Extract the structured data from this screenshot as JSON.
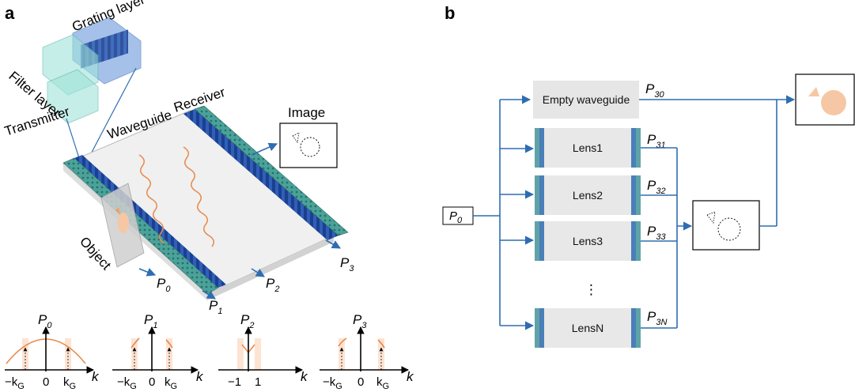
{
  "panels": {
    "a": "a",
    "b": "b"
  },
  "panel_a": {
    "grating_layer": "Grating layer",
    "filter_layer": "Filter layer",
    "waveguide": "Waveguide",
    "receiver": "Receiver",
    "transmitter": "Transmitter",
    "image": "Image",
    "object": "Object",
    "ports": [
      {
        "base": "P",
        "sub": "0"
      },
      {
        "base": "P",
        "sub": "1"
      },
      {
        "base": "P",
        "sub": "2"
      },
      {
        "base": "P",
        "sub": "3"
      }
    ]
  },
  "spectra": [
    {
      "ylabel": {
        "base": "P",
        "sub": "0"
      },
      "ticks": [
        "−k",
        "0",
        "k"
      ],
      "tick_subs": [
        "G",
        "",
        "G"
      ],
      "xlabel": "k"
    },
    {
      "ylabel": {
        "base": "P",
        "sub": "1"
      },
      "ticks": [
        "−k",
        "0",
        "k"
      ],
      "tick_subs": [
        "G",
        "",
        "G"
      ],
      "xlabel": "k"
    },
    {
      "ylabel": {
        "base": "P",
        "sub": "2"
      },
      "ticks": [
        "−1",
        "1"
      ],
      "tick_subs": [
        "",
        ""
      ],
      "xlabel": "k"
    },
    {
      "ylabel": {
        "base": "P",
        "sub": "3"
      },
      "ticks": [
        "−k",
        "0",
        "k"
      ],
      "tick_subs": [
        "G",
        "",
        "G"
      ],
      "xlabel": "k"
    }
  ],
  "panel_b": {
    "input": {
      "base": "P",
      "sub": "0"
    },
    "empty": "Empty waveguide",
    "empty_out": {
      "base": "P",
      "sub": "30"
    },
    "lenses": [
      {
        "name": "Lens1",
        "out": {
          "base": "P",
          "sub": "31"
        }
      },
      {
        "name": "Lens2",
        "out": {
          "base": "P",
          "sub": "32"
        }
      },
      {
        "name": "Lens3",
        "out": {
          "base": "P",
          "sub": "33"
        }
      },
      {
        "name": "LensN",
        "out": {
          "base": "P",
          "sub": "3N"
        }
      }
    ],
    "ellipsis": "⋮"
  },
  "colors": {
    "flow": "#2e6db0",
    "orange": "#e8894a",
    "peach": "#f6c7a4",
    "lens_box": "#e8e8e8",
    "lens_edge": "#4a7fb8",
    "lens_edge2": "#5fa3a8",
    "grating_blue": "#3b6fc4",
    "filter_teal": "#7fd3c8"
  }
}
